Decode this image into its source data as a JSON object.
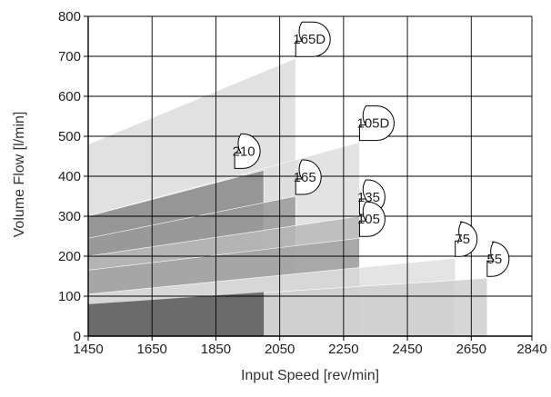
{
  "chart_data": {
    "type": "area",
    "xlabel": "Input Speed [rev/min]",
    "ylabel": "Volume Flow [l/min]",
    "xlim": [
      1450,
      2840
    ],
    "ylim": [
      0,
      800
    ],
    "x_ticks": [
      "1450",
      "1650",
      "1850",
      "2050",
      "2250",
      "2450",
      "2650",
      "2840"
    ],
    "y_ticks": [
      "0",
      "100",
      "200",
      "300",
      "400",
      "500",
      "600",
      "700",
      "800"
    ],
    "grid": true,
    "series": [
      {
        "name": "165D",
        "x": [
          1450,
          2100
        ],
        "y": [
          480,
          695
        ],
        "fill": "#dcdcdc"
      },
      {
        "name": "105D",
        "x": [
          1450,
          2300
        ],
        "y": [
          300,
          485
        ],
        "fill": "#dedede"
      },
      {
        "name": "210",
        "x": [
          1450,
          2000
        ],
        "y": [
          300,
          415
        ],
        "fill": "#8a8a8a"
      },
      {
        "name": "165",
        "x": [
          1450,
          2100
        ],
        "y": [
          245,
          350
        ],
        "fill": "#9a9a9a"
      },
      {
        "name": "135",
        "x": [
          1450,
          2300
        ],
        "y": [
          200,
          300
        ],
        "fill": "#b8b8b8"
      },
      {
        "name": "105",
        "x": [
          1450,
          2300
        ],
        "y": [
          165,
          245
        ],
        "fill": "#a3a3a3"
      },
      {
        "name": "75",
        "x": [
          1450,
          2600
        ],
        "y": [
          105,
          195
        ],
        "fill": "#dfdfdf"
      },
      {
        "name": "55",
        "x": [
          1450,
          2700
        ],
        "y": [
          80,
          145
        ],
        "fill": "#cfcfcf"
      }
    ],
    "base_fill": "#4a4a4a"
  }
}
